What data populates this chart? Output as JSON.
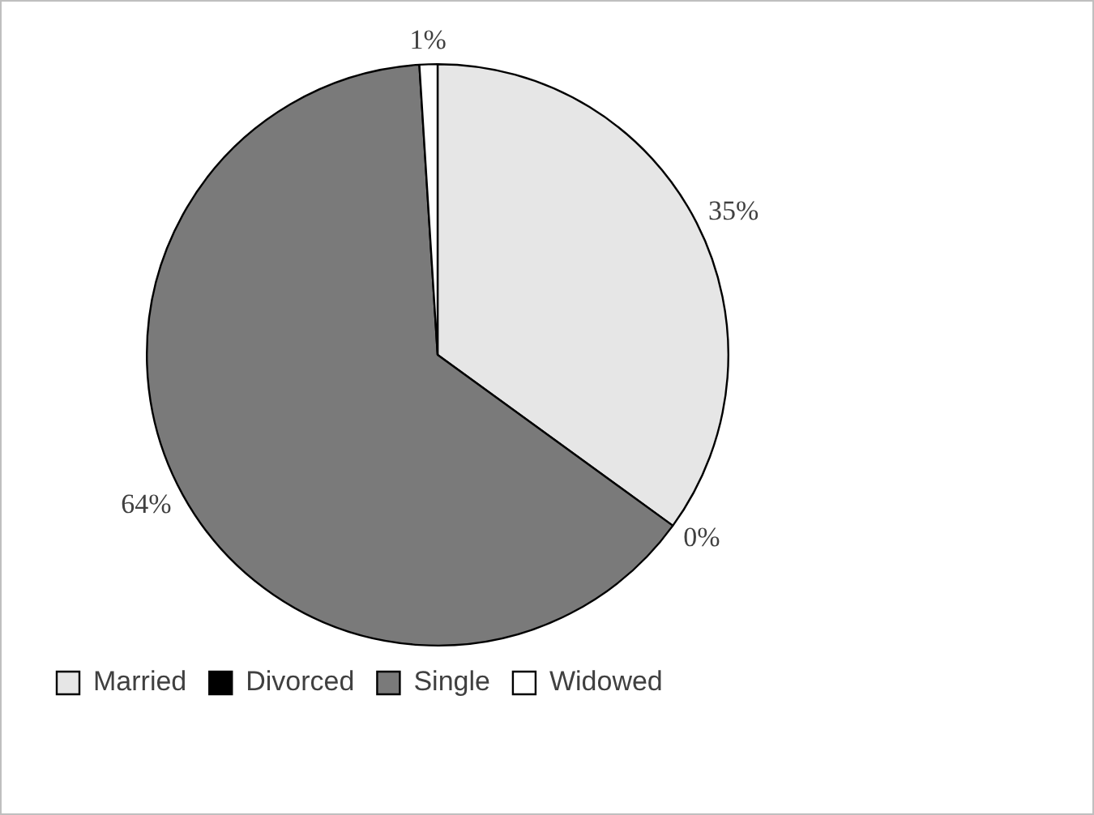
{
  "chart_data": {
    "type": "pie",
    "categories": [
      "Married",
      "Divorced",
      "Single",
      "Widowed"
    ],
    "values": [
      35,
      0,
      64,
      1
    ],
    "value_labels": [
      "35%",
      "0%",
      "64%",
      "1%"
    ],
    "colors": [
      "#e6e6e6",
      "#000000",
      "#7a7a7a",
      "#ffffff"
    ],
    "legend": "bottom"
  }
}
